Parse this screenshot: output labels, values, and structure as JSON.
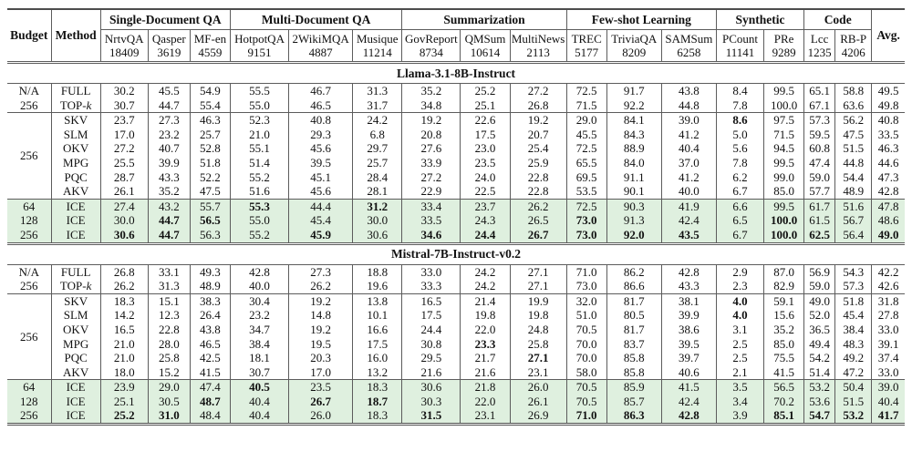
{
  "table": {
    "header": {
      "budget_label": "Budget",
      "method_label": "Method",
      "avg_label": "Avg.",
      "groups": [
        {
          "label": "Single-Document QA",
          "span": 3
        },
        {
          "label": "Multi-Document QA",
          "span": 3
        },
        {
          "label": "Summarization",
          "span": 3
        },
        {
          "label": "Few-shot Learning",
          "span": 3
        },
        {
          "label": "Synthetic",
          "span": 2
        },
        {
          "label": "Code",
          "span": 2
        }
      ],
      "datasets": [
        {
          "name": "NrtvQA",
          "size": "18409"
        },
        {
          "name": "Qasper",
          "size": "3619"
        },
        {
          "name": "MF-en",
          "size": "4559"
        },
        {
          "name": "HotpotQA",
          "size": "9151"
        },
        {
          "name": "2WikiMQA",
          "size": "4887"
        },
        {
          "name": "Musique",
          "size": "11214"
        },
        {
          "name": "GovReport",
          "size": "8734"
        },
        {
          "name": "QMSum",
          "size": "10614"
        },
        {
          "name": "MultiNews",
          "size": "2113"
        },
        {
          "name": "TREC",
          "size": "5177"
        },
        {
          "name": "TriviaQA",
          "size": "8209"
        },
        {
          "name": "SAMSum",
          "size": "6258"
        },
        {
          "name": "PCount",
          "size": "11141"
        },
        {
          "name": "PRe",
          "size": "9289"
        },
        {
          "name": "Lcc",
          "size": "1235"
        },
        {
          "name": "RB-P",
          "size": "4206"
        }
      ]
    },
    "highlight_color": "#dff0df",
    "bold_marker": "*",
    "sections": [
      {
        "title": "Llama-3.1-8B-Instruct",
        "blocks": [
          {
            "type": "plain",
            "rows": [
              {
                "budget": "N/A",
                "method": "FULL",
                "values": [
                  "30.2",
                  "45.5",
                  "54.9",
                  "55.5",
                  "46.7",
                  "31.3",
                  "35.2",
                  "25.2",
                  "27.2",
                  "72.5",
                  "91.7",
                  "43.8",
                  "8.4",
                  "99.5",
                  "65.1",
                  "58.8",
                  "49.5"
                ]
              },
              {
                "budget": "256",
                "method": "TOP-k",
                "values": [
                  "30.7",
                  "44.7",
                  "55.4",
                  "55.0",
                  "46.5",
                  "31.7",
                  "34.8",
                  "25.1",
                  "26.8",
                  "71.5",
                  "92.2",
                  "44.8",
                  "7.8",
                  "100.0",
                  "67.1",
                  "63.6",
                  "49.8"
                ]
              }
            ]
          },
          {
            "type": "grouped",
            "budget": "256",
            "rows": [
              {
                "method": "SKV",
                "values": [
                  "23.7",
                  "27.3",
                  "46.3",
                  "52.3",
                  "40.8",
                  "24.2",
                  "19.2",
                  "22.6",
                  "19.2",
                  "29.0",
                  "84.1",
                  "39.0",
                  "*8.6",
                  "97.5",
                  "57.3",
                  "56.2",
                  "40.8"
                ]
              },
              {
                "method": "SLM",
                "values": [
                  "17.0",
                  "23.2",
                  "25.7",
                  "21.0",
                  "29.3",
                  "6.8",
                  "20.8",
                  "17.5",
                  "20.7",
                  "45.5",
                  "84.3",
                  "41.2",
                  "5.0",
                  "71.5",
                  "59.5",
                  "47.5",
                  "33.5"
                ]
              },
              {
                "method": "OKV",
                "values": [
                  "27.2",
                  "40.7",
                  "52.8",
                  "55.1",
                  "45.6",
                  "29.7",
                  "27.6",
                  "23.0",
                  "25.4",
                  "72.5",
                  "88.9",
                  "40.4",
                  "5.6",
                  "94.5",
                  "60.8",
                  "51.5",
                  "46.3"
                ]
              },
              {
                "method": "MPG",
                "values": [
                  "25.5",
                  "39.9",
                  "51.8",
                  "51.4",
                  "39.5",
                  "25.7",
                  "33.9",
                  "23.5",
                  "25.9",
                  "65.5",
                  "84.0",
                  "37.0",
                  "7.8",
                  "99.5",
                  "47.4",
                  "44.8",
                  "44.6"
                ]
              },
              {
                "method": "PQC",
                "values": [
                  "28.7",
                  "43.3",
                  "52.2",
                  "55.2",
                  "45.1",
                  "28.4",
                  "27.2",
                  "24.0",
                  "22.8",
                  "69.5",
                  "91.1",
                  "41.2",
                  "6.2",
                  "99.0",
                  "59.0",
                  "54.4",
                  "47.3"
                ]
              },
              {
                "method": "AKV",
                "values": [
                  "26.1",
                  "35.2",
                  "47.5",
                  "51.6",
                  "45.6",
                  "28.1",
                  "22.9",
                  "22.5",
                  "22.8",
                  "53.5",
                  "90.1",
                  "40.0",
                  "6.7",
                  "85.0",
                  "57.7",
                  "48.9",
                  "42.8"
                ]
              }
            ]
          },
          {
            "type": "highlight",
            "rows": [
              {
                "budget": "64",
                "method": "ICE",
                "values": [
                  "27.4",
                  "43.2",
                  "55.7",
                  "*55.3",
                  "44.4",
                  "*31.2",
                  "33.4",
                  "23.7",
                  "26.2",
                  "72.5",
                  "90.3",
                  "41.9",
                  "6.6",
                  "99.5",
                  "61.7",
                  "51.6",
                  "47.8"
                ]
              },
              {
                "budget": "128",
                "method": "ICE",
                "values": [
                  "30.0",
                  "*44.7",
                  "*56.5",
                  "55.0",
                  "45.4",
                  "30.0",
                  "33.5",
                  "24.3",
                  "26.5",
                  "*73.0",
                  "91.3",
                  "42.4",
                  "6.5",
                  "*100.0",
                  "61.5",
                  "56.7",
                  "48.6"
                ]
              },
              {
                "budget": "256",
                "method": "ICE",
                "values": [
                  "*30.6",
                  "*44.7",
                  "56.3",
                  "55.2",
                  "*45.9",
                  "30.6",
                  "*34.6",
                  "*24.4",
                  "*26.7",
                  "*73.0",
                  "*92.0",
                  "*43.5",
                  "6.7",
                  "*100.0",
                  "*62.5",
                  "56.4",
                  "*49.0"
                ]
              }
            ]
          }
        ]
      },
      {
        "title": "Mistral-7B-Instruct-v0.2",
        "blocks": [
          {
            "type": "plain",
            "rows": [
              {
                "budget": "N/A",
                "method": "FULL",
                "values": [
                  "26.8",
                  "33.1",
                  "49.3",
                  "42.8",
                  "27.3",
                  "18.8",
                  "33.0",
                  "24.2",
                  "27.1",
                  "71.0",
                  "86.2",
                  "42.8",
                  "2.9",
                  "87.0",
                  "56.9",
                  "54.3",
                  "42.2"
                ]
              },
              {
                "budget": "256",
                "method": "TOP-k",
                "values": [
                  "26.2",
                  "31.3",
                  "48.9",
                  "40.0",
                  "26.2",
                  "19.6",
                  "33.3",
                  "24.2",
                  "27.1",
                  "73.0",
                  "86.6",
                  "43.3",
                  "2.3",
                  "82.9",
                  "59.0",
                  "57.3",
                  "42.6"
                ]
              }
            ]
          },
          {
            "type": "grouped",
            "budget": "256",
            "rows": [
              {
                "method": "SKV",
                "values": [
                  "18.3",
                  "15.1",
                  "38.3",
                  "30.4",
                  "19.2",
                  "13.8",
                  "16.5",
                  "21.4",
                  "19.9",
                  "32.0",
                  "81.7",
                  "38.1",
                  "*4.0",
                  "59.1",
                  "49.0",
                  "51.8",
                  "31.8"
                ]
              },
              {
                "method": "SLM",
                "values": [
                  "14.2",
                  "12.3",
                  "26.4",
                  "23.2",
                  "14.8",
                  "10.1",
                  "17.5",
                  "19.8",
                  "19.8",
                  "51.0",
                  "80.5",
                  "39.9",
                  "*4.0",
                  "15.6",
                  "52.0",
                  "45.4",
                  "27.8"
                ]
              },
              {
                "method": "OKV",
                "values": [
                  "16.5",
                  "22.8",
                  "43.8",
                  "34.7",
                  "19.2",
                  "16.6",
                  "24.4",
                  "22.0",
                  "24.8",
                  "70.5",
                  "81.7",
                  "38.6",
                  "3.1",
                  "35.2",
                  "36.5",
                  "38.4",
                  "33.0"
                ]
              },
              {
                "method": "MPG",
                "values": [
                  "21.0",
                  "28.0",
                  "46.5",
                  "38.4",
                  "19.5",
                  "17.5",
                  "30.8",
                  "*23.3",
                  "25.8",
                  "70.0",
                  "83.7",
                  "39.5",
                  "2.5",
                  "85.0",
                  "49.4",
                  "48.3",
                  "39.1"
                ]
              },
              {
                "method": "PQC",
                "values": [
                  "21.0",
                  "25.8",
                  "42.5",
                  "18.1",
                  "20.3",
                  "16.0",
                  "29.5",
                  "21.7",
                  "*27.1",
                  "70.0",
                  "85.8",
                  "39.7",
                  "2.5",
                  "75.5",
                  "54.2",
                  "49.2",
                  "37.4"
                ]
              },
              {
                "method": "AKV",
                "values": [
                  "18.0",
                  "15.2",
                  "41.5",
                  "30.7",
                  "17.0",
                  "13.2",
                  "21.6",
                  "21.6",
                  "23.1",
                  "58.0",
                  "85.8",
                  "40.6",
                  "2.1",
                  "41.5",
                  "51.4",
                  "47.2",
                  "33.0"
                ]
              }
            ]
          },
          {
            "type": "highlight",
            "rows": [
              {
                "budget": "64",
                "method": "ICE",
                "values": [
                  "23.9",
                  "29.0",
                  "47.4",
                  "*40.5",
                  "23.5",
                  "18.3",
                  "30.6",
                  "21.8",
                  "26.0",
                  "70.5",
                  "85.9",
                  "41.5",
                  "3.5",
                  "56.5",
                  "53.2",
                  "50.4",
                  "39.0"
                ]
              },
              {
                "budget": "128",
                "method": "ICE",
                "values": [
                  "25.1",
                  "30.5",
                  "*48.7",
                  "40.4",
                  "*26.7",
                  "*18.7",
                  "30.3",
                  "22.0",
                  "26.1",
                  "70.5",
                  "85.7",
                  "42.4",
                  "3.4",
                  "70.2",
                  "53.6",
                  "51.5",
                  "40.4"
                ]
              },
              {
                "budget": "256",
                "method": "ICE",
                "values": [
                  "*25.2",
                  "*31.0",
                  "48.4",
                  "40.4",
                  "26.0",
                  "18.3",
                  "*31.5",
                  "23.1",
                  "26.9",
                  "*71.0",
                  "*86.3",
                  "*42.8",
                  "3.9",
                  "*85.1",
                  "*54.7",
                  "*53.2",
                  "*41.7"
                ]
              }
            ]
          }
        ]
      }
    ]
  }
}
